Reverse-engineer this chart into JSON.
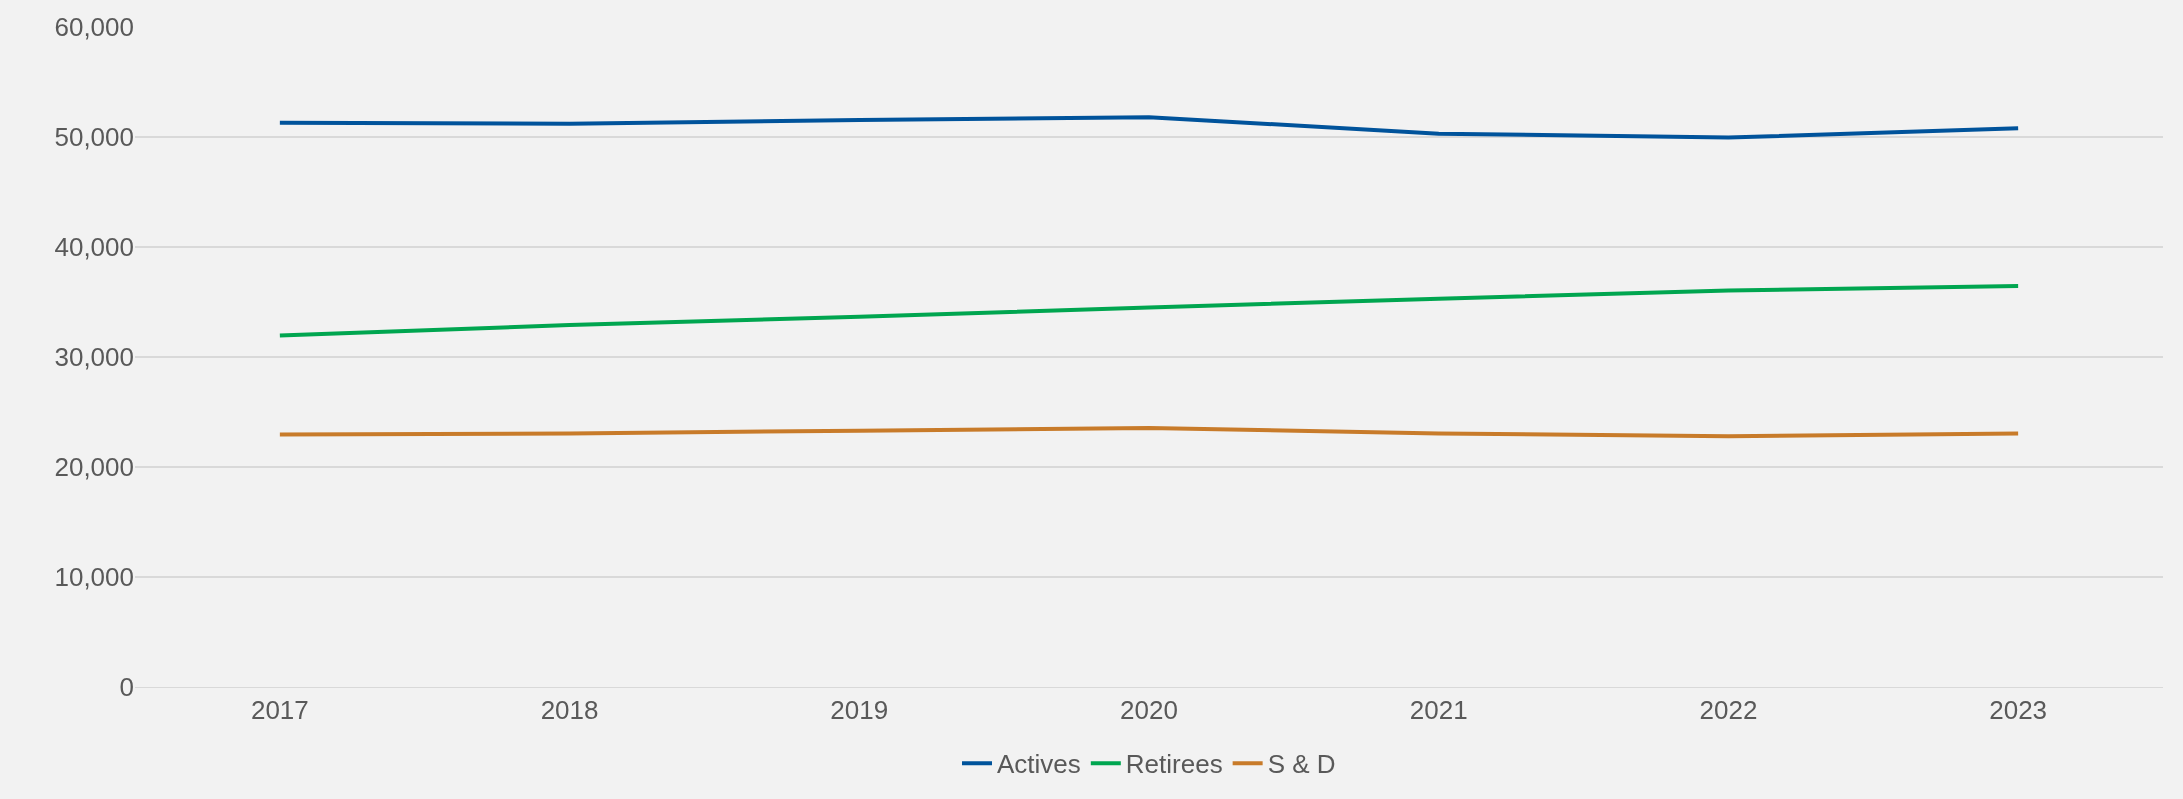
{
  "chart_data": {
    "type": "line",
    "categories": [
      "2017",
      "2018",
      "2019",
      "2020",
      "2021",
      "2022",
      "2023"
    ],
    "series": [
      {
        "name": "Actives",
        "color": "#00539b",
        "values": [
          51300,
          51200,
          51550,
          51800,
          50300,
          49950,
          50800
        ]
      },
      {
        "name": "Retirees",
        "color": "#00a650",
        "values": [
          31950,
          32900,
          33650,
          34500,
          35300,
          36050,
          36450
        ]
      },
      {
        "name": "S & D",
        "color": "#c87b2a",
        "values": [
          22950,
          23050,
          23300,
          23550,
          23050,
          22800,
          23050
        ]
      }
    ],
    "ylim": [
      0,
      60000
    ],
    "yticks": [
      {
        "value": 0,
        "label": "0"
      },
      {
        "value": 10000,
        "label": "10,000"
      },
      {
        "value": 20000,
        "label": "20,000"
      },
      {
        "value": 30000,
        "label": "30,000"
      },
      {
        "value": 40000,
        "label": "40,000"
      },
      {
        "value": 50000,
        "label": "50,000"
      },
      {
        "value": 60000,
        "label": "60,000"
      }
    ],
    "grid": "y",
    "legend": "bottom",
    "marker": "none",
    "line_style": "solid"
  }
}
